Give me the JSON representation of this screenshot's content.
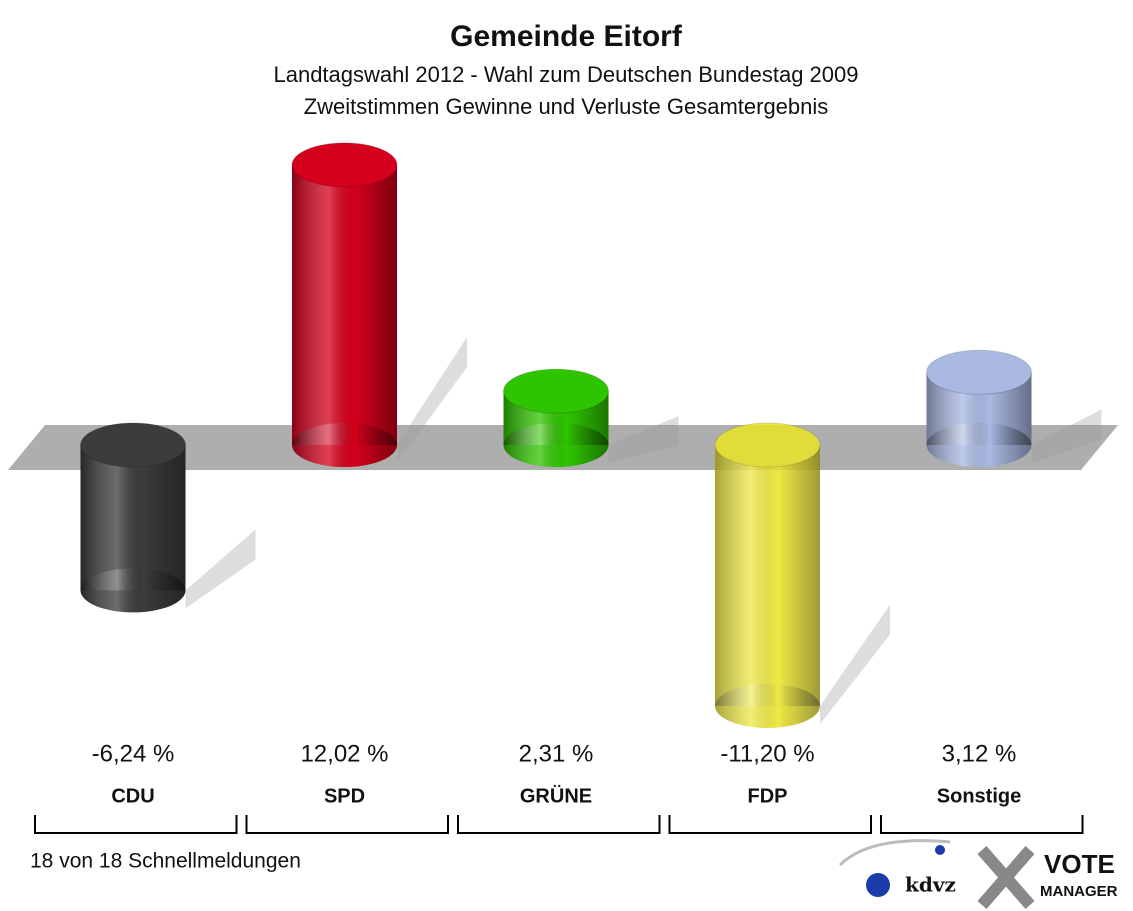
{
  "chart_data": {
    "type": "bar3d",
    "title": "Gemeinde Eitorf",
    "subtitle": [
      "Landtagswahl 2012 - Wahl zum Deutschen Bundestag 2009",
      "Zweitstimmen Gewinne und Verluste Gesamtergebnis"
    ],
    "categories": [
      "CDU",
      "SPD",
      "GRÜNE",
      "FDP",
      "Sonstige"
    ],
    "values": [
      -6.24,
      12.02,
      2.31,
      -11.2,
      3.12
    ],
    "value_labels": [
      "-6,24 %",
      "12,02 %",
      "2,31 %",
      "-11,20 %",
      "3,12 %"
    ],
    "colors": [
      "#3c3c3c",
      "#d4001c",
      "#2fc400",
      "#ece526",
      "#a9b9e2"
    ],
    "footer": "18 von 18 Schnellmeldungen",
    "logos": [
      "kdvz",
      "VOTE",
      "MANAGER"
    ]
  }
}
